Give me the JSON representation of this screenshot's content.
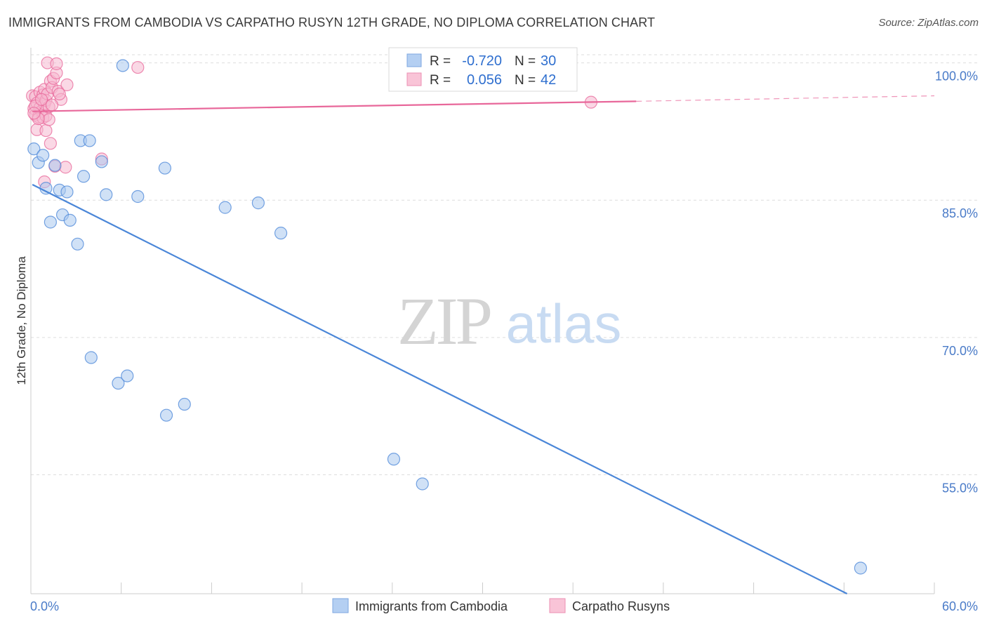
{
  "title": "IMMIGRANTS FROM CAMBODIA VS CARPATHO RUSYN 12TH GRADE, NO DIPLOMA CORRELATION CHART",
  "source": "Source: ZipAtlas.com",
  "watermark": {
    "zip": "ZIP",
    "atlas": "atlas"
  },
  "colors": {
    "blue": "#4a86d8",
    "blue_fill": "#a9c8ef",
    "pink": "#e8679a",
    "pink_fill": "#f6b8cf",
    "grid": "#dddddd"
  },
  "chart_data": {
    "type": "scatter",
    "xlabel": "",
    "ylabel": "12th Grade, No Diploma",
    "xlim": [
      0,
      60
    ],
    "ylim": [
      42,
      101.5
    ],
    "x_tick_labels": {
      "min": "0.0%",
      "max": "60.0%"
    },
    "y_ticks": [
      {
        "value": 100,
        "label": "100.0%"
      },
      {
        "value": 85,
        "label": "85.0%"
      },
      {
        "value": 70,
        "label": "70.0%"
      },
      {
        "value": 55,
        "label": "55.0%"
      }
    ],
    "legend": {
      "rows": [
        {
          "r_label": "R =",
          "r_value": "-0.720",
          "n_label": "N =",
          "n_value": "30"
        },
        {
          "r_label": "R =",
          "r_value": "0.056",
          "n_label": "N =",
          "n_value": "42"
        }
      ],
      "bottom": [
        "Immigrants from Cambodia",
        "Carpatho Rusyns"
      ]
    },
    "series": [
      {
        "name": "Immigrants from Cambodia",
        "color": "#4a86d8",
        "trend": {
          "x0": 0.1,
          "y0": 86.7,
          "x1": 54.2,
          "y1": 42.0
        },
        "points": [
          {
            "x": 0.2,
            "y": 90.6
          },
          {
            "x": 0.5,
            "y": 89.1
          },
          {
            "x": 0.8,
            "y": 89.9
          },
          {
            "x": 1.0,
            "y": 86.3
          },
          {
            "x": 1.3,
            "y": 82.6
          },
          {
            "x": 1.6,
            "y": 88.8
          },
          {
            "x": 1.9,
            "y": 86.1
          },
          {
            "x": 2.1,
            "y": 83.4
          },
          {
            "x": 2.4,
            "y": 85.9
          },
          {
            "x": 2.6,
            "y": 82.8
          },
          {
            "x": 3.1,
            "y": 80.2
          },
          {
            "x": 3.5,
            "y": 87.6
          },
          {
            "x": 3.3,
            "y": 91.5
          },
          {
            "x": 3.9,
            "y": 91.5
          },
          {
            "x": 4.7,
            "y": 89.2
          },
          {
            "x": 5.0,
            "y": 85.6
          },
          {
            "x": 6.1,
            "y": 99.7
          },
          {
            "x": 7.1,
            "y": 85.4
          },
          {
            "x": 8.9,
            "y": 88.5
          },
          {
            "x": 12.9,
            "y": 84.2
          },
          {
            "x": 15.1,
            "y": 84.7
          },
          {
            "x": 16.6,
            "y": 81.4
          },
          {
            "x": 4.0,
            "y": 67.8
          },
          {
            "x": 5.8,
            "y": 65.0
          },
          {
            "x": 6.4,
            "y": 65.8
          },
          {
            "x": 9.0,
            "y": 61.5
          },
          {
            "x": 10.2,
            "y": 62.7
          },
          {
            "x": 24.1,
            "y": 56.7
          },
          {
            "x": 26.0,
            "y": 54.0
          },
          {
            "x": 55.1,
            "y": 44.8
          }
        ]
      },
      {
        "name": "Carpatho Rusyns",
        "color": "#e8679a",
        "trend": {
          "x0": 0.1,
          "y0": 94.7,
          "x1": 40.2,
          "y1": 95.8
        },
        "trend_dashed": {
          "x0": 40.2,
          "y0": 95.8,
          "x1": 60.0,
          "y1": 96.4
        },
        "points": [
          {
            "x": 0.1,
            "y": 96.4
          },
          {
            "x": 0.2,
            "y": 95.0
          },
          {
            "x": 0.3,
            "y": 94.3
          },
          {
            "x": 0.3,
            "y": 96.3
          },
          {
            "x": 0.4,
            "y": 92.7
          },
          {
            "x": 0.4,
            "y": 95.6
          },
          {
            "x": 0.5,
            "y": 94.1
          },
          {
            "x": 0.6,
            "y": 96.8
          },
          {
            "x": 0.6,
            "y": 95.1
          },
          {
            "x": 0.7,
            "y": 94.7
          },
          {
            "x": 0.8,
            "y": 94.0
          },
          {
            "x": 0.8,
            "y": 96.5
          },
          {
            "x": 0.9,
            "y": 95.5
          },
          {
            "x": 0.9,
            "y": 97.1
          },
          {
            "x": 1.0,
            "y": 92.6
          },
          {
            "x": 1.0,
            "y": 94.2
          },
          {
            "x": 1.0,
            "y": 95.9
          },
          {
            "x": 1.1,
            "y": 96.6
          },
          {
            "x": 1.1,
            "y": 100.0
          },
          {
            "x": 1.2,
            "y": 95.2
          },
          {
            "x": 1.3,
            "y": 91.2
          },
          {
            "x": 1.3,
            "y": 98.0
          },
          {
            "x": 1.4,
            "y": 97.3
          },
          {
            "x": 1.5,
            "y": 98.3
          },
          {
            "x": 1.6,
            "y": 88.7
          },
          {
            "x": 1.7,
            "y": 98.9
          },
          {
            "x": 1.7,
            "y": 99.9
          },
          {
            "x": 1.8,
            "y": 96.9
          },
          {
            "x": 2.0,
            "y": 96.0
          },
          {
            "x": 2.3,
            "y": 88.6
          },
          {
            "x": 2.4,
            "y": 97.6
          },
          {
            "x": 0.9,
            "y": 87.0
          },
          {
            "x": 1.2,
            "y": 93.8
          },
          {
            "x": 0.5,
            "y": 93.9
          },
          {
            "x": 4.7,
            "y": 89.5
          },
          {
            "x": 7.1,
            "y": 99.5
          },
          {
            "x": 37.2,
            "y": 95.7
          },
          {
            "x": 0.3,
            "y": 95.3
          },
          {
            "x": 0.7,
            "y": 96.0
          },
          {
            "x": 1.4,
            "y": 95.4
          },
          {
            "x": 0.2,
            "y": 94.5
          },
          {
            "x": 1.9,
            "y": 96.6
          }
        ]
      }
    ]
  }
}
